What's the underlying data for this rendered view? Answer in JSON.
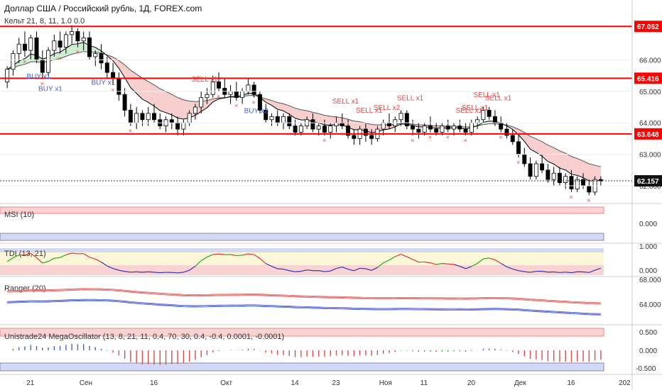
{
  "colors": {
    "up": "#ffffff",
    "down": "#000000",
    "hline": "#ff0000",
    "ma_fast": "#000000",
    "ma_slow": "#555555",
    "cloud_up": "#c8eccb",
    "cloud_down": "#f7c9c9",
    "buy": "#4a5fd6",
    "sell": "#e04a4a"
  },
  "header": {
    "title": "Доллар США / Российский рубль, 1Д, FOREX.com",
    "subtitle": "Кельт 21, 8, 11, 1.0 0.0"
  },
  "price_axis": {
    "ticks": [
      "66.000",
      "65.000",
      "64.000",
      "63.000",
      "62.000"
    ],
    "tick_values": [
      66.0,
      65.0,
      64.0,
      63.0,
      62.0
    ],
    "range": [
      61.55,
      67.45
    ]
  },
  "levels": [
    {
      "value": 67.062,
      "label": "67.062"
    },
    {
      "value": 65.416,
      "label": "65.416"
    },
    {
      "value": 63.648,
      "label": "63.648"
    }
  ],
  "last_price": {
    "value": 62.157,
    "label": "62.157"
  },
  "x_axis": {
    "labels": [
      "21",
      "Сен",
      "16",
      "Окт",
      "14",
      "23",
      "Ноя",
      "11",
      "20",
      "Дек",
      "16",
      "202"
    ],
    "label_index": [
      4,
      13,
      25,
      37,
      49,
      56,
      64,
      71,
      79,
      87,
      96,
      110
    ]
  },
  "signals": {
    "buy": [
      {
        "text": "BUY x1",
        "i": 5
      },
      {
        "text": "BUY x1",
        "i": 7
      },
      {
        "text": "BUY x1",
        "i": 16
      },
      {
        "text": "BUY x2",
        "i": 42
      }
    ],
    "sell": [
      {
        "text": "SELL x1",
        "i": 33
      },
      {
        "text": "SELL x1",
        "i": 57
      },
      {
        "text": "SELL x1",
        "i": 61
      },
      {
        "text": "SELL x2",
        "i": 64
      },
      {
        "text": "SELL x1",
        "i": 68
      },
      {
        "text": "SELL x1",
        "i": 78
      },
      {
        "text": "SELL x1",
        "i": 79
      },
      {
        "text": "SELL x1",
        "i": 81
      },
      {
        "text": "SELL x1",
        "i": 83
      }
    ]
  },
  "panes": [
    {
      "label": "MSI (10)",
      "ticks": [
        "0.000"
      ]
    },
    {
      "label": "TDI (13, 21)",
      "ticks": [
        "1.000",
        "0.000"
      ]
    },
    {
      "label": "Ranger (20)",
      "ticks": [
        "68.000",
        "64.000"
      ]
    },
    {
      "label": "Unistrade24 MegaOscillator (13, 8, 21, 11, 0.4, 70, 30, 0.4, -0.4, 0.0001, -0.0001)",
      "ticks": [
        "0.500",
        "0.000",
        "-0.500"
      ]
    }
  ],
  "chart_data": {
    "type": "candlestick",
    "title": "Доллар США / Российский рубль, 1Д, FOREX.com",
    "x_range": [
      "Aug",
      "Dec"
    ],
    "ylim": [
      61.55,
      67.45
    ],
    "candles": [
      [
        65.3,
        65.8,
        65.1,
        65.7
      ],
      [
        65.7,
        66.3,
        65.5,
        66.2
      ],
      [
        66.2,
        66.7,
        65.9,
        66.5
      ],
      [
        66.5,
        66.9,
        66.1,
        66.3
      ],
      [
        66.3,
        66.8,
        66.0,
        66.7
      ],
      [
        66.7,
        66.9,
        65.9,
        66.0
      ],
      [
        66.0,
        66.3,
        65.4,
        65.6
      ],
      [
        65.6,
        66.4,
        65.5,
        66.3
      ],
      [
        66.3,
        66.8,
        66.1,
        66.6
      ],
      [
        66.6,
        66.9,
        66.2,
        66.4
      ],
      [
        66.4,
        66.9,
        66.2,
        66.8
      ],
      [
        66.8,
        67.1,
        66.5,
        66.9
      ],
      [
        66.9,
        67.0,
        66.4,
        66.6
      ],
      [
        66.6,
        66.9,
        66.3,
        66.7
      ],
      [
        66.7,
        66.9,
        66.0,
        66.1
      ],
      [
        66.1,
        66.3,
        65.8,
        66.2
      ],
      [
        66.2,
        66.5,
        65.7,
        65.9
      ],
      [
        65.9,
        66.1,
        65.4,
        65.6
      ],
      [
        65.6,
        65.9,
        65.2,
        65.4
      ],
      [
        65.4,
        65.6,
        64.7,
        64.9
      ],
      [
        64.9,
        65.1,
        64.2,
        64.4
      ],
      [
        64.4,
        64.6,
        63.9,
        64.0
      ],
      [
        64.0,
        64.5,
        63.8,
        64.3
      ],
      [
        64.3,
        64.4,
        63.9,
        64.1
      ],
      [
        64.1,
        64.5,
        63.9,
        64.3
      ],
      [
        64.3,
        64.6,
        64.0,
        64.1
      ],
      [
        64.1,
        64.3,
        63.8,
        63.9
      ],
      [
        63.9,
        64.2,
        63.7,
        64.1
      ],
      [
        64.1,
        64.3,
        63.8,
        64.0
      ],
      [
        64.0,
        64.2,
        63.6,
        63.8
      ],
      [
        63.8,
        64.1,
        63.6,
        64.0
      ],
      [
        64.0,
        64.4,
        63.9,
        64.3
      ],
      [
        64.3,
        64.6,
        64.1,
        64.5
      ],
      [
        64.5,
        65.0,
        64.3,
        64.8
      ],
      [
        64.8,
        65.1,
        64.6,
        64.9
      ],
      [
        64.9,
        65.5,
        64.8,
        65.3
      ],
      [
        65.3,
        65.6,
        65.0,
        65.1
      ],
      [
        65.1,
        65.4,
        64.8,
        64.9
      ],
      [
        64.9,
        65.2,
        64.6,
        65.0
      ],
      [
        65.0,
        65.3,
        64.7,
        64.8
      ],
      [
        64.8,
        65.1,
        64.6,
        65.0
      ],
      [
        65.0,
        65.4,
        64.9,
        65.2
      ],
      [
        65.2,
        65.3,
        64.8,
        64.9
      ],
      [
        64.9,
        65.0,
        64.3,
        64.4
      ],
      [
        64.4,
        64.6,
        64.0,
        64.1
      ],
      [
        64.1,
        64.3,
        63.9,
        64.2
      ],
      [
        64.2,
        64.4,
        63.9,
        64.0
      ],
      [
        64.0,
        64.3,
        63.8,
        64.2
      ],
      [
        64.2,
        64.3,
        63.8,
        63.9
      ],
      [
        63.9,
        64.1,
        63.6,
        63.7
      ],
      [
        63.7,
        64.0,
        63.6,
        63.9
      ],
      [
        63.9,
        64.2,
        63.8,
        64.1
      ],
      [
        64.1,
        64.3,
        63.7,
        63.8
      ],
      [
        63.8,
        64.0,
        63.6,
        63.9
      ],
      [
        63.9,
        64.1,
        63.6,
        63.7
      ],
      [
        63.7,
        64.0,
        63.5,
        63.9
      ],
      [
        63.9,
        64.2,
        63.7,
        64.0
      ],
      [
        64.0,
        64.3,
        63.8,
        63.9
      ],
      [
        63.9,
        64.1,
        63.5,
        63.6
      ],
      [
        63.6,
        63.8,
        63.3,
        63.5
      ],
      [
        63.5,
        63.9,
        63.3,
        63.8
      ],
      [
        63.8,
        64.0,
        63.4,
        63.6
      ],
      [
        63.6,
        63.8,
        63.3,
        63.5
      ],
      [
        63.5,
        63.9,
        63.4,
        63.8
      ],
      [
        63.8,
        64.1,
        63.6,
        64.0
      ],
      [
        64.0,
        64.3,
        63.8,
        63.9
      ],
      [
        63.9,
        64.2,
        63.7,
        64.1
      ],
      [
        64.1,
        64.4,
        63.9,
        64.3
      ],
      [
        64.3,
        64.4,
        63.8,
        63.9
      ],
      [
        63.9,
        64.1,
        63.6,
        63.8
      ],
      [
        63.8,
        64.0,
        63.5,
        63.7
      ],
      [
        63.7,
        64.0,
        63.6,
        63.9
      ],
      [
        63.9,
        64.2,
        63.7,
        63.8
      ],
      [
        63.8,
        64.0,
        63.6,
        63.7
      ],
      [
        63.7,
        64.0,
        63.6,
        63.9
      ],
      [
        63.9,
        64.1,
        63.7,
        63.8
      ],
      [
        63.8,
        64.0,
        63.6,
        63.9
      ],
      [
        63.9,
        64.1,
        63.7,
        63.8
      ],
      [
        63.8,
        64.0,
        63.6,
        63.7
      ],
      [
        63.7,
        64.1,
        63.6,
        64.0
      ],
      [
        64.0,
        64.2,
        63.8,
        64.1
      ],
      [
        64.1,
        64.5,
        64.0,
        64.4
      ],
      [
        64.4,
        64.5,
        64.1,
        64.2
      ],
      [
        64.2,
        64.4,
        63.9,
        64.0
      ],
      [
        64.0,
        64.2,
        63.7,
        63.8
      ],
      [
        63.8,
        64.0,
        63.5,
        63.6
      ],
      [
        63.6,
        63.8,
        63.3,
        63.4
      ],
      [
        63.4,
        63.6,
        62.9,
        63.0
      ],
      [
        63.0,
        63.2,
        62.6,
        62.7
      ],
      [
        62.7,
        62.9,
        62.2,
        62.3
      ],
      [
        62.3,
        62.8,
        62.2,
        62.7
      ],
      [
        62.7,
        63.0,
        62.4,
        62.5
      ],
      [
        62.5,
        62.7,
        62.1,
        62.2
      ],
      [
        62.2,
        62.6,
        62.0,
        62.4
      ],
      [
        62.4,
        62.6,
        62.0,
        62.1
      ],
      [
        62.1,
        62.4,
        61.9,
        62.3
      ],
      [
        62.3,
        62.5,
        61.8,
        61.9
      ],
      [
        61.9,
        62.3,
        61.8,
        62.2
      ],
      [
        62.2,
        62.4,
        61.9,
        62.0
      ],
      [
        62.0,
        62.2,
        61.7,
        61.8
      ],
      [
        61.8,
        62.3,
        61.7,
        62.2
      ],
      [
        62.2,
        62.3,
        62.0,
        62.157
      ]
    ]
  }
}
